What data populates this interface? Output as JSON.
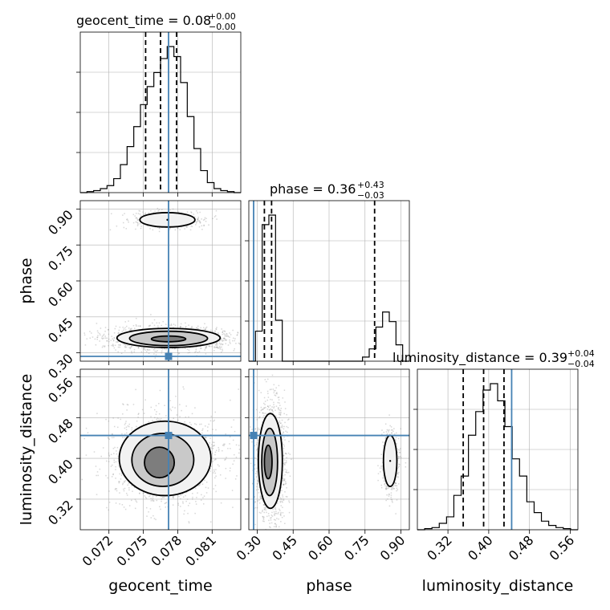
{
  "chart_data": {
    "type": "corner",
    "parameters": [
      "geocent_time",
      "phase",
      "luminosity_distance"
    ],
    "axis_ranges": {
      "geocent_time": [
        0.0695,
        0.0835
      ],
      "phase": [
        0.265,
        0.935
      ],
      "luminosity_distance": [
        0.26,
        0.575
      ]
    },
    "ticks": {
      "geocent_time": [
        0.072,
        0.075,
        0.078,
        0.081
      ],
      "geocent_time_labels": [
        "0.072",
        "0.075",
        "0.078",
        "0.081"
      ],
      "phase": [
        0.3,
        0.45,
        0.6,
        0.75,
        0.9
      ],
      "phase_labels": [
        "0.30",
        "0.45",
        "0.60",
        "0.75",
        "0.90"
      ],
      "luminosity_distance": [
        0.32,
        0.4,
        0.48,
        0.56
      ],
      "luminosity_distance_labels": [
        "0.32",
        "0.40",
        "0.48",
        "0.56"
      ]
    },
    "truths": {
      "geocent_time": 0.0772,
      "phase": 0.285,
      "luminosity_distance": 0.445
    },
    "titles": [
      {
        "param": "geocent_time",
        "text": "geocent_time = 0.08",
        "plus": "+0.00",
        "minus": "−0.00"
      },
      {
        "param": "phase",
        "text": "phase = 0.36",
        "plus": "+0.43",
        "minus": "−0.03"
      },
      {
        "param": "luminosity_distance",
        "text": "luminosity_distance = 0.39",
        "plus": "+0.04",
        "minus": "−0.04"
      }
    ],
    "quantiles": {
      "geocent_time": [
        0.0752,
        0.0765,
        0.0779
      ],
      "phase": [
        0.33,
        0.36,
        0.79
      ],
      "luminosity_distance": [
        0.35,
        0.39,
        0.43
      ]
    },
    "histograms": {
      "geocent_time": {
        "range": [
          0.0695,
          0.0835
        ],
        "counts": [
          0,
          0.5,
          1,
          2,
          3.5,
          7,
          14,
          23,
          33,
          44,
          53,
          60,
          67,
          73,
          68,
          55,
          38,
          22,
          11,
          5,
          2,
          1,
          0.5,
          0
        ]
      },
      "phase": {
        "range": [
          0.265,
          0.935
        ],
        "counts": [
          0,
          22,
          100,
          107,
          30,
          0,
          0,
          0,
          0,
          0,
          0,
          0,
          0,
          0,
          0,
          0,
          0,
          3,
          9,
          25,
          36,
          29,
          12,
          0
        ]
      },
      "luminosity_distance": {
        "range": [
          0.26,
          0.575
        ],
        "counts": [
          0,
          0.5,
          1,
          3,
          6,
          16,
          25,
          44,
          55,
          65,
          68,
          60,
          48,
          33,
          25,
          13,
          8,
          4,
          2,
          1,
          0.5,
          0
        ]
      }
    },
    "contours": {
      "phase_vs_geocent_time": [
        {
          "cx": 0.0772,
          "cy": 0.362,
          "rx": 0.0045,
          "ry": 0.04
        },
        {
          "cx": 0.0772,
          "cy": 0.36,
          "rx": 0.0034,
          "ry": 0.03
        },
        {
          "cx": 0.0772,
          "cy": 0.358,
          "rx": 0.0015,
          "ry": 0.012
        },
        {
          "cx": 0.0771,
          "cy": 0.855,
          "rx": 0.0024,
          "ry": 0.03
        }
      ],
      "luminosity_distance_vs_geocent_time": [
        {
          "cx": 0.0769,
          "cy": 0.4,
          "rx": 0.004,
          "ry": 0.073
        },
        {
          "cx": 0.0767,
          "cy": 0.397,
          "rx": 0.0027,
          "ry": 0.052
        },
        {
          "cx": 0.0764,
          "cy": 0.392,
          "rx": 0.0013,
          "ry": 0.03
        }
      ],
      "luminosity_distance_vs_phase": [
        {
          "cx": 0.355,
          "cy": 0.395,
          "rx": 0.05,
          "ry": 0.093
        },
        {
          "cx": 0.352,
          "cy": 0.393,
          "rx": 0.033,
          "ry": 0.066
        },
        {
          "cx": 0.346,
          "cy": 0.393,
          "rx": 0.016,
          "ry": 0.033
        },
        {
          "cx": 0.855,
          "cy": 0.395,
          "rx": 0.028,
          "ry": 0.05
        }
      ]
    },
    "grid": true,
    "colors": {
      "truth": "#4682b4",
      "hist": "#000000",
      "grid": "#b0b0b0"
    }
  }
}
